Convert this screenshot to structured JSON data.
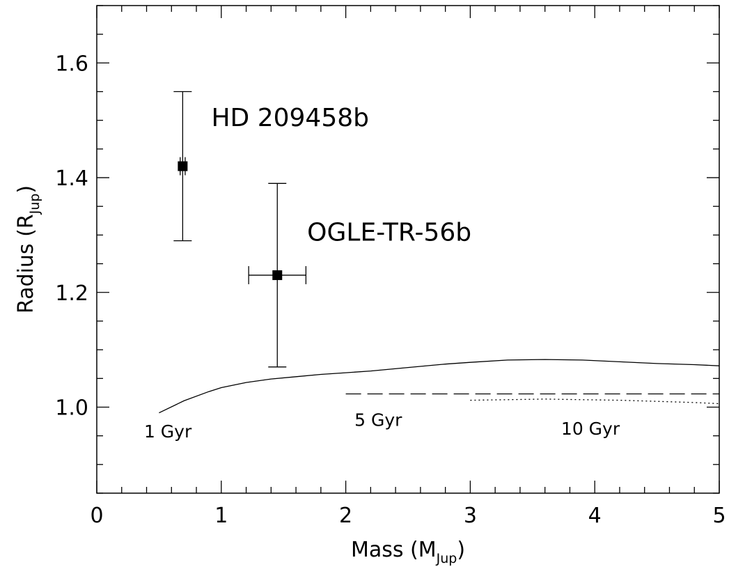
{
  "chart_data": {
    "type": "scatter",
    "xlabel": {
      "prefix": "Mass (M",
      "sub": "Jup",
      "suffix": ")"
    },
    "ylabel": {
      "prefix": "Radius (R",
      "sub": "Jup",
      "suffix": ")"
    },
    "xlim": [
      0,
      5
    ],
    "ylim": [
      0.85,
      1.7
    ],
    "x_ticks": [
      0,
      1,
      2,
      3,
      4,
      5
    ],
    "x_tick_labels": [
      "0",
      "1",
      "2",
      "3",
      "4",
      "5"
    ],
    "x_minor_step": 0.2,
    "y_ticks": [
      1.0,
      1.2,
      1.4,
      1.6
    ],
    "y_tick_labels": [
      "1.0",
      "1.2",
      "1.4",
      "1.6"
    ],
    "y_minor_step": 0.05,
    "grid": false,
    "points": [
      {
        "name": "HD 209458b",
        "x": 0.69,
        "y": 1.42,
        "x_err": 0.02,
        "y_err_low": 0.13,
        "y_err_high": 0.13
      },
      {
        "name": "OGLE-TR-56b",
        "x": 1.45,
        "y": 1.23,
        "x_err": 0.23,
        "y_err_low": 0.16,
        "y_err_high": 0.16
      }
    ],
    "curves": [
      {
        "name": "1 Gyr",
        "style": "solid",
        "x": [
          0.5,
          0.7,
          0.9,
          1.0,
          1.2,
          1.4,
          1.6,
          1.8,
          2.0,
          2.2,
          2.5,
          2.8,
          3.0,
          3.3,
          3.6,
          3.9,
          4.2,
          4.5,
          4.8,
          5.0
        ],
        "y": [
          0.99,
          1.011,
          1.027,
          1.034,
          1.043,
          1.049,
          1.053,
          1.057,
          1.06,
          1.063,
          1.069,
          1.075,
          1.078,
          1.082,
          1.083,
          1.082,
          1.079,
          1.076,
          1.074,
          1.072
        ]
      },
      {
        "name": "5 Gyr",
        "style": "dashed",
        "x": [
          2.0,
          3.0,
          4.0,
          5.0
        ],
        "y": [
          1.023,
          1.023,
          1.023,
          1.023
        ]
      },
      {
        "name": "10 Gyr",
        "style": "dotted",
        "x": [
          3.0,
          3.3,
          3.6,
          3.9,
          4.2,
          4.5,
          4.8,
          5.0
        ],
        "y": [
          1.012,
          1.013,
          1.014,
          1.013,
          1.012,
          1.01,
          1.008,
          1.006
        ]
      }
    ],
    "annotations": [
      {
        "text": "HD 209458b",
        "x": 0.92,
        "y": 1.49,
        "class": "planet-label"
      },
      {
        "text": "OGLE-TR-56b",
        "x": 1.69,
        "y": 1.29,
        "class": "planet-label"
      },
      {
        "text": "1 Gyr",
        "x": 0.38,
        "y": 0.947,
        "class": "curve-label"
      },
      {
        "text": "5 Gyr",
        "x": 2.07,
        "y": 0.967,
        "class": "curve-label"
      },
      {
        "text": "10 Gyr",
        "x": 3.73,
        "y": 0.952,
        "class": "curve-label"
      }
    ]
  }
}
